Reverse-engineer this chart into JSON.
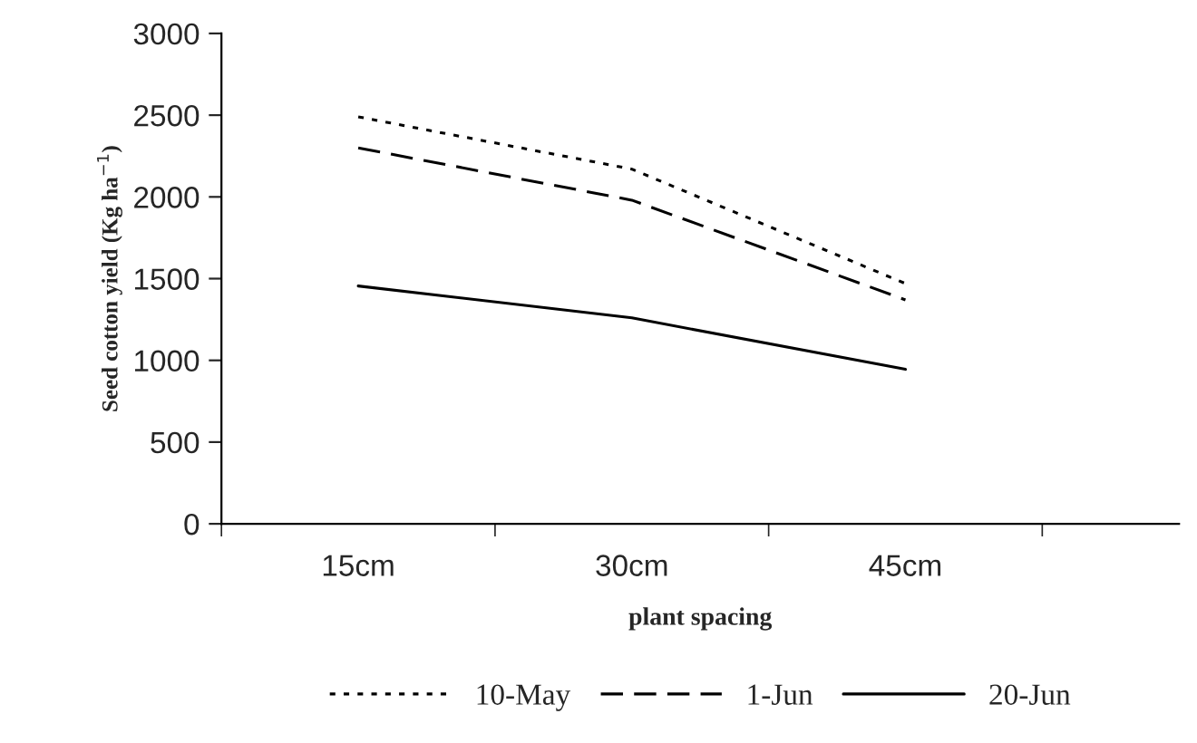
{
  "chart_data": {
    "type": "line",
    "xlabel": "plant spacing",
    "ylabel": "Seed cotton yield (Kg ha$^{−1}$)",
    "categories": [
      "15cm",
      "30cm",
      "45cm"
    ],
    "series": [
      {
        "name": "10-May",
        "color": "#000000",
        "line_style": "dotted",
        "values": [
          2490,
          2170,
          1470
        ]
      },
      {
        "name": "1-Jun",
        "color": "#000000",
        "line_style": "dashed",
        "values": [
          2300,
          1980,
          1370
        ]
      },
      {
        "name": "20-Jun",
        "color": "#000000",
        "line_style": "solid",
        "values": [
          1455,
          1260,
          945
        ]
      }
    ],
    "ylim": [
      0,
      3000
    ],
    "yticks": [
      0,
      500,
      1000,
      1500,
      2000,
      2500,
      3000
    ],
    "grid": false,
    "legend": "bottom",
    "marker": "none"
  }
}
